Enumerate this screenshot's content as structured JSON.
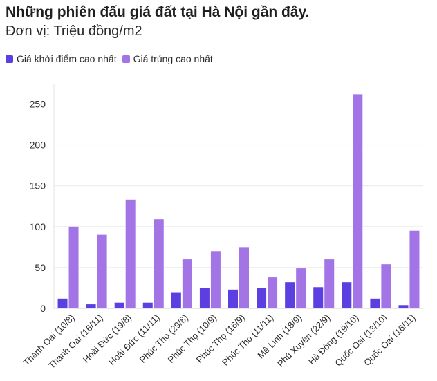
{
  "chart_data": {
    "type": "bar",
    "title": "Những phiên đấu giá đất tại Hà Nội gần đây.",
    "subtitle": "Đơn vị: Triệu đồng/m2",
    "categories": [
      "Thanh Oai (10/8)",
      "Thanh Oai (16/11)",
      "Hoài Đức (19/8)",
      "Hoài Đức (11/11)",
      "Phúc Thọ (29/8)",
      "Phúc Thọ (10/9)",
      "Phúc Thọ (16/9)",
      "Phúc Thọ (11/11)",
      "Mê Linh (18/9)",
      "Phú Xuyên (22/9)",
      "Hà Đông (19/10)",
      "Quốc Oai (13/10)",
      "Quốc Oai (16/11)"
    ],
    "series": [
      {
        "name": "Giá khởi điểm cao nhất",
        "color": "#5b3fe0",
        "values": [
          12,
          5,
          7,
          7,
          19,
          25,
          23,
          25,
          32,
          26,
          32,
          12,
          4
        ]
      },
      {
        "name": "Giá trúng cao nhất",
        "color": "#a274e6",
        "values": [
          100,
          90,
          133,
          109,
          60,
          70,
          75,
          38,
          49,
          60,
          262,
          54,
          95
        ]
      }
    ],
    "ylim": [
      0,
      275
    ],
    "yticks": [
      0,
      50,
      100,
      150,
      200,
      250
    ],
    "grid": true,
    "legend_position": "top-left"
  }
}
